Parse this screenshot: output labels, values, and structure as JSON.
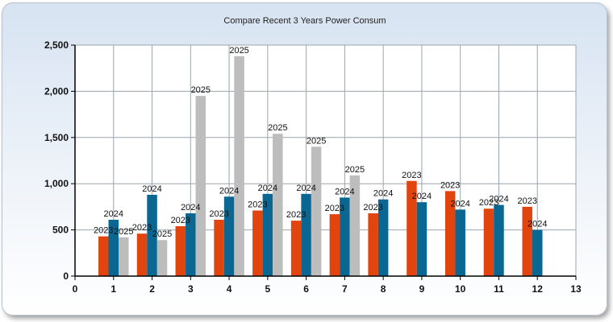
{
  "colors": {
    "series_2023": "#e2440e",
    "series_2024": "#0a6791",
    "series_2025": "#bdbdbd",
    "grid": "#9aa4ae",
    "plot_background": "#ffffff"
  },
  "chart_data": {
    "type": "bar",
    "title": "Compare Recent 3 Years Power Consum",
    "xlabel": "",
    "ylabel": "",
    "xlim": [
      0,
      13
    ],
    "ylim": [
      0,
      2500
    ],
    "x_ticks": [
      "0",
      "1",
      "2",
      "3",
      "4",
      "5",
      "6",
      "7",
      "8",
      "9",
      "10",
      "11",
      "12",
      "13"
    ],
    "y_ticks": [
      "0",
      "500",
      "1,000",
      "1,500",
      "2,000",
      "2,500"
    ],
    "grid": true,
    "legend": "none",
    "categories": [
      1,
      2,
      3,
      4,
      5,
      6,
      7,
      8,
      9,
      10,
      11,
      12
    ],
    "series": [
      {
        "label": "2023",
        "color": "#e2440e",
        "values": [
          430,
          460,
          540,
          610,
          710,
          600,
          670,
          680,
          1030,
          920,
          730,
          750
        ]
      },
      {
        "label": "2024",
        "color": "#0a6791",
        "values": [
          610,
          880,
          680,
          860,
          890,
          890,
          850,
          830,
          800,
          720,
          770,
          500
        ]
      },
      {
        "label": "2025",
        "color": "#bdbdbd",
        "values": [
          420,
          390,
          1950,
          2380,
          1540,
          1400,
          1090,
          null,
          null,
          null,
          null,
          null
        ]
      }
    ]
  }
}
